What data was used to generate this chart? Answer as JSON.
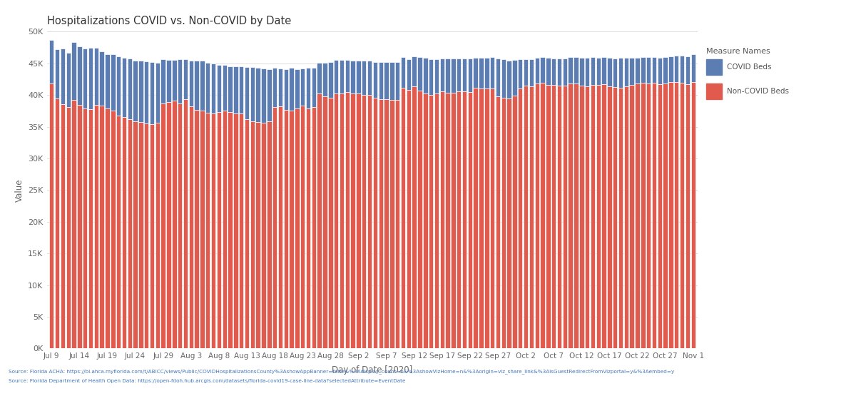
{
  "title": "Hospitalizations COVID vs. Non-COVID by Date",
  "xlabel": "Day of Date [2020]",
  "ylabel": "Value",
  "covid_color": "#5B7DB1",
  "noncovid_color": "#E05A4E",
  "legend_title": "Measure Names",
  "legend_labels": [
    "COVID Beds",
    "Non-COVID Beds"
  ],
  "ylim": [
    0,
    50000
  ],
  "yticks": [
    0,
    5000,
    10000,
    15000,
    20000,
    25000,
    30000,
    35000,
    40000,
    45000,
    50000
  ],
  "ytick_labels": [
    "0K",
    "5K",
    "10K",
    "15K",
    "20K",
    "25K",
    "30K",
    "35K",
    "40K",
    "45K",
    "50K"
  ],
  "source_line1": "Source: Florida ACHA: https://bi.ahca.myflorida.com/t/ABICC/views/Public/COVIDHospitalizationsCounty%3AshowAppBanner=false&%3Adisplay_count=n&%3AshowVizHome=n&%3Aorigin=viz_share_link&%3AisGuestRedirectFromVizportal=y&%3Aembed=y",
  "source_line2": "Source: Florida Department of Health Open Data: https://open-fdoh.hub.arcgis.com/datasets/florida-covid19-case-line-data?selectedAttribute=EventDate",
  "background_color": "#ffffff",
  "plot_bg_color": "#ffffff",
  "grid_color": "#d8d8d8",
  "bar_edge_color": "#ffffff",
  "noncovid_beds": [
    41800,
    39500,
    38600,
    38100,
    39200,
    38500,
    37900,
    37800,
    38500,
    38300,
    37900,
    37500,
    36800,
    36500,
    36200,
    35900,
    35700,
    35500,
    35400,
    35600,
    38700,
    38900,
    39100,
    38700,
    39300,
    38200,
    37700,
    37500,
    37200,
    37100,
    37300,
    37600,
    37300,
    37100,
    37100,
    36200,
    35900,
    35700,
    35600,
    35800,
    38100,
    38200,
    37700,
    37600,
    37900,
    38300,
    37900,
    38100,
    40200,
    39800,
    39600,
    40300,
    40200,
    40500,
    40300,
    40200,
    40000,
    40000,
    39600,
    39400,
    39300,
    39200,
    39200,
    41200,
    40800,
    41400,
    40700,
    40300,
    40000,
    40300,
    40600,
    40400,
    40400,
    40600,
    40600,
    40500,
    41100,
    41000,
    41000,
    41000,
    39800,
    39600,
    39500,
    39900,
    41000,
    41500,
    41400,
    41800,
    41900,
    41600,
    41600,
    41500,
    41500,
    41800,
    41800,
    41500,
    41400,
    41600,
    41600,
    41700,
    41400,
    41300,
    41200,
    41400,
    41600,
    41800,
    41900,
    41800,
    41900,
    41700,
    41800,
    42000,
    42000,
    41900,
    41700,
    42000
  ],
  "covid_beds": [
    6900,
    7700,
    8700,
    8600,
    9100,
    9200,
    9400,
    9600,
    9000,
    8600,
    8500,
    8900,
    9300,
    9400,
    9600,
    9500,
    9700,
    9800,
    9800,
    9500,
    6900,
    6600,
    6400,
    6900,
    6400,
    7200,
    7700,
    7900,
    7900,
    7900,
    7400,
    7100,
    7200,
    7400,
    7400,
    8200,
    8500,
    8600,
    8600,
    8300,
    6200,
    6000,
    6400,
    6700,
    6200,
    5900,
    6400,
    6200,
    4900,
    5300,
    5600,
    5200,
    5300,
    5000,
    5100,
    5200,
    5400,
    5400,
    5600,
    5800,
    5900,
    6000,
    6000,
    4800,
    4900,
    4700,
    5300,
    5600,
    5700,
    5400,
    5200,
    5400,
    5400,
    5200,
    5200,
    5300,
    4800,
    4900,
    4900,
    5000,
    6000,
    6000,
    5900,
    5600,
    4600,
    4200,
    4300,
    4100,
    4100,
    4300,
    4200,
    4300,
    4300,
    4200,
    4200,
    4400,
    4500,
    4400,
    4300,
    4300,
    4500,
    4500,
    4700,
    4500,
    4300,
    4100,
    4100,
    4200,
    4100,
    4200,
    4200,
    4100,
    4200,
    4300,
    4400,
    4400
  ],
  "xtick_dates": [
    "Jul 9",
    "Jul 14",
    "Jul 19",
    "Jul 24",
    "Jul 29",
    "Aug 3",
    "Aug 8",
    "Aug 13",
    "Aug 18",
    "Aug 23",
    "Aug 28",
    "Sep 2",
    "Sep 7",
    "Sep 12",
    "Sep 17",
    "Sep 22",
    "Sep 27",
    "Oct 2",
    "Oct 7",
    "Oct 12",
    "Oct 17",
    "Oct 22",
    "Oct 27",
    "Nov 1"
  ],
  "xtick_positions_days": [
    0,
    5,
    10,
    15,
    20,
    25,
    30,
    35,
    40,
    45,
    50,
    55,
    60,
    65,
    70,
    75,
    80,
    85,
    90,
    95,
    100,
    105,
    110,
    115
  ]
}
